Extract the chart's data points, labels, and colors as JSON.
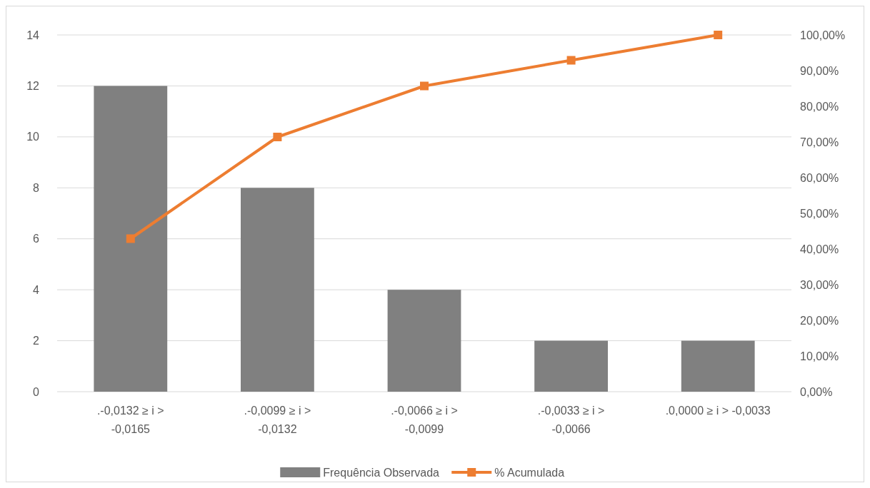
{
  "chart_data": {
    "type": "bar",
    "categories": [
      ".-0,0132 ≥ i > -0,0165",
      ".-0,0099 ≥ i > -0,0132",
      ".-0,0066 ≥ i > -0,0099",
      ".-0,0033 ≥ i > -0,0066",
      ".0,0000 ≥ i > -0,0033"
    ],
    "series": [
      {
        "name": "Frequência Observada",
        "color": "#808080",
        "values": [
          12,
          8,
          4,
          2,
          2
        ]
      },
      {
        "name": "% Acumulada",
        "type": "line",
        "axis": "y2",
        "color": "#ed7d31",
        "marker": "square",
        "values": [
          42.9,
          71.4,
          85.7,
          92.9,
          100
        ]
      }
    ],
    "ylim": [
      0,
      14
    ],
    "yticks": [
      0,
      2,
      4,
      6,
      8,
      10,
      12,
      14
    ],
    "y2lim": [
      0,
      100
    ],
    "y2ticks": [
      {
        "value": 0,
        "label": "0,00%"
      },
      {
        "value": 10,
        "label": "10,00%"
      },
      {
        "value": 20,
        "label": "20,00%"
      },
      {
        "value": 30,
        "label": "30,00%"
      },
      {
        "value": 40,
        "label": "40,00%"
      },
      {
        "value": 50,
        "label": "50,00%"
      },
      {
        "value": 60,
        "label": "60,00%"
      },
      {
        "value": 70,
        "label": "70,00%"
      },
      {
        "value": 80,
        "label": "80,00%"
      },
      {
        "value": 90,
        "label": "90,00%"
      },
      {
        "value": 100,
        "label": "100,00%"
      }
    ],
    "grid": "y",
    "legend": "bottom"
  }
}
